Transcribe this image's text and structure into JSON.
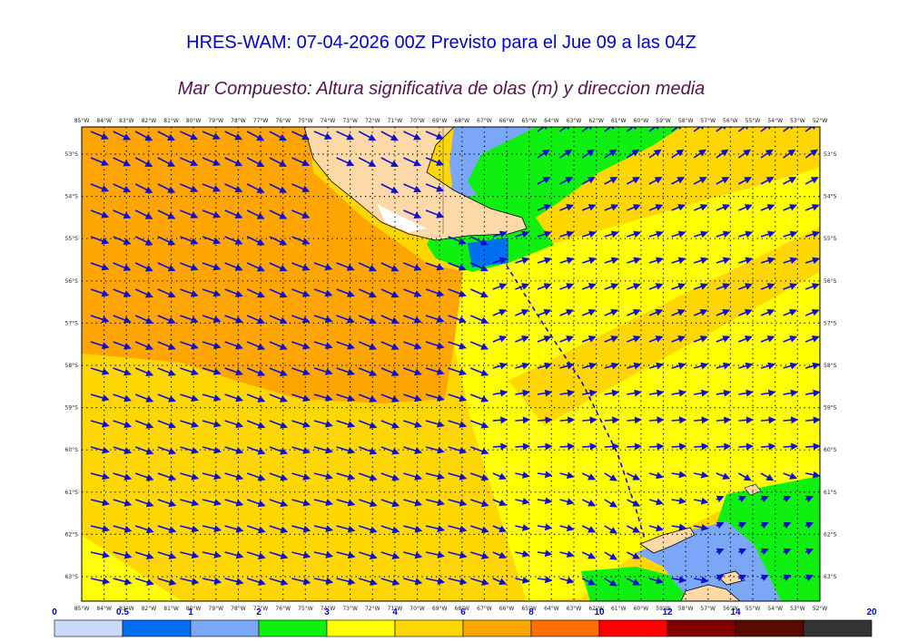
{
  "title": "HRES-WAM: 07-04-2026 00Z Previsto para el Jue 09 a las 04Z",
  "subtitle": "Mar Compuesto: Altura significativa de olas (m) y direccion media",
  "map": {
    "lon_labels": [
      "85°W",
      "84°W",
      "83°W",
      "82°W",
      "81°W",
      "80°W",
      "79°W",
      "78°W",
      "77°W",
      "76°W",
      "75°W",
      "74°W",
      "73°W",
      "72°W",
      "71°W",
      "70°W",
      "69°W",
      "68°W",
      "67°W",
      "66°W",
      "65°W",
      "64°W",
      "63°W",
      "62°W",
      "61°W",
      "60°W",
      "59°W",
      "58°W",
      "57°W",
      "56°W",
      "55°W",
      "54°W",
      "53°W",
      "52°W"
    ],
    "lat_labels": [
      "53°S",
      "54°S",
      "55°S",
      "56°S",
      "57°S",
      "58°S",
      "59°S",
      "60°S",
      "61°S",
      "62°S",
      "63°S"
    ],
    "colors": {
      "land": "#fdd9a8",
      "wave_1_2": "#7ba7f8",
      "wave_2_3": "#10f010",
      "wave_3_4": "#ffff00",
      "wave_4_5": "#ffd700",
      "wave_5_6": "#ffa500",
      "arrow": "#1010cc"
    }
  },
  "colorbar": {
    "ticks": [
      "0",
      "0.5",
      "1",
      "2",
      "3",
      "4",
      "6",
      "8",
      "10",
      "12",
      "14",
      "20"
    ],
    "colors": [
      "#c8daf8",
      "#0070f0",
      "#7ba7f8",
      "#10f010",
      "#ffff00",
      "#ffd700",
      "#ffa500",
      "#ff7000",
      "#ff0000",
      "#800000",
      "#5a0a00",
      "#333333"
    ]
  }
}
